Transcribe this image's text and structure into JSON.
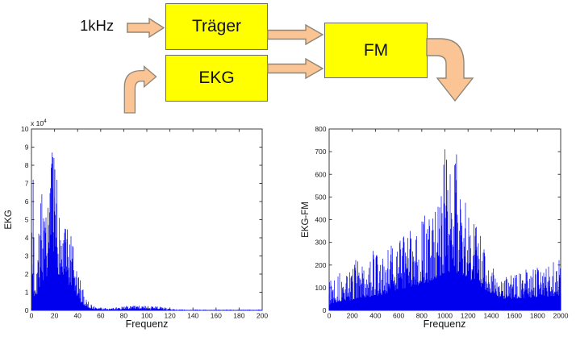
{
  "diagram": {
    "input_label": "1kHz",
    "boxes": {
      "traeger": {
        "label": "Träger"
      },
      "ekg": {
        "label": "EKG"
      },
      "fm": {
        "label": "FM"
      }
    },
    "arrows": [
      "input-to-traeger",
      "traeger-to-fm",
      "ekg-to-fm",
      "feed-into-ekg",
      "fm-output"
    ],
    "colors": {
      "box_fill": "#FFFF00",
      "box_border": "#6b6b6b",
      "arrow_fill": "#FAC494",
      "arrow_border": "#8f8678"
    }
  },
  "chart_data": [
    {
      "type": "line",
      "subtype": "magnitude-spectrum",
      "title": "",
      "ylabel": "EKG",
      "xlabel": "Frequenz",
      "y_scale_label": {
        "prefix": "x 10",
        "exponent": "4"
      },
      "xlim": [
        0,
        200
      ],
      "ylim": [
        0,
        100000
      ],
      "x_ticks": [
        0,
        20,
        40,
        60,
        80,
        100,
        120,
        140,
        160,
        180,
        200
      ],
      "y_ticks": [
        0,
        1,
        2,
        3,
        4,
        5,
        6,
        7,
        8,
        9,
        10
      ],
      "y_tick_scale": 10000,
      "grid": false,
      "legend": null,
      "line_color": "#0000EE",
      "axis_color": "#3d3d3d",
      "seed": 7,
      "envelope": [
        [
          0,
          30000,
          1000
        ],
        [
          1,
          72000,
          4000
        ],
        [
          3,
          56000,
          6000
        ],
        [
          5,
          42000,
          9000
        ],
        [
          8,
          64000,
          15000
        ],
        [
          12,
          52000,
          18000
        ],
        [
          15,
          60000,
          20000
        ],
        [
          18,
          87000,
          22000
        ],
        [
          20,
          80000,
          22000
        ],
        [
          23,
          66000,
          20000
        ],
        [
          26,
          50000,
          19000
        ],
        [
          30,
          46000,
          15000
        ],
        [
          34,
          44000,
          12000
        ],
        [
          38,
          28000,
          9000
        ],
        [
          42,
          18000,
          5000
        ],
        [
          46,
          9000,
          2500
        ],
        [
          50,
          4000,
          1200
        ],
        [
          55,
          2000,
          500
        ],
        [
          62,
          1500,
          300
        ],
        [
          70,
          1300,
          300
        ],
        [
          78,
          2200,
          500
        ],
        [
          85,
          2600,
          600
        ],
        [
          92,
          2800,
          700
        ],
        [
          100,
          2500,
          600
        ],
        [
          108,
          2300,
          500
        ],
        [
          114,
          1800,
          400
        ],
        [
          120,
          900,
          150
        ],
        [
          128,
          500,
          80
        ],
        [
          140,
          450,
          60
        ],
        [
          160,
          400,
          50
        ],
        [
          180,
          400,
          50
        ],
        [
          200,
          500,
          60
        ]
      ],
      "peaks": [
        [
          1.5,
          72000
        ],
        [
          9,
          64000
        ],
        [
          18,
          87000
        ],
        [
          19.5,
          84000
        ],
        [
          22,
          72000
        ],
        [
          29,
          45000
        ]
      ]
    },
    {
      "type": "line",
      "subtype": "magnitude-spectrum",
      "title": "",
      "ylabel": "EKG-FM",
      "xlabel": "Frequenz",
      "y_scale_label": null,
      "xlim": [
        0,
        2000
      ],
      "ylim": [
        0,
        800
      ],
      "x_ticks": [
        0,
        200,
        400,
        600,
        800,
        1000,
        1200,
        1400,
        1600,
        1800,
        2000
      ],
      "y_ticks": [
        0,
        100,
        200,
        300,
        400,
        500,
        600,
        700,
        800
      ],
      "y_tick_scale": 1,
      "grid": false,
      "legend": null,
      "line_color": "#0000EE",
      "axis_color": "#3d3d3d",
      "seed": 13,
      "envelope": [
        [
          0,
          160,
          25
        ],
        [
          60,
          170,
          35
        ],
        [
          120,
          160,
          40
        ],
        [
          200,
          185,
          45
        ],
        [
          240,
          225,
          50
        ],
        [
          300,
          190,
          55
        ],
        [
          360,
          240,
          60
        ],
        [
          390,
          265,
          65
        ],
        [
          440,
          230,
          65
        ],
        [
          500,
          265,
          75
        ],
        [
          560,
          310,
          85
        ],
        [
          620,
          330,
          90
        ],
        [
          680,
          370,
          100
        ],
        [
          720,
          360,
          105
        ],
        [
          760,
          340,
          110
        ],
        [
          800,
          450,
          115
        ],
        [
          840,
          430,
          120
        ],
        [
          880,
          420,
          130
        ],
        [
          930,
          470,
          140
        ],
        [
          970,
          520,
          150
        ],
        [
          1000,
          710,
          165
        ],
        [
          1030,
          660,
          170
        ],
        [
          1060,
          600,
          165
        ],
        [
          1090,
          690,
          165
        ],
        [
          1120,
          580,
          160
        ],
        [
          1160,
          500,
          150
        ],
        [
          1200,
          450,
          140
        ],
        [
          1250,
          400,
          125
        ],
        [
          1300,
          350,
          110
        ],
        [
          1350,
          260,
          90
        ],
        [
          1400,
          200,
          75
        ],
        [
          1450,
          160,
          60
        ],
        [
          1500,
          140,
          50
        ],
        [
          1560,
          160,
          50
        ],
        [
          1620,
          170,
          52
        ],
        [
          1700,
          180,
          55
        ],
        [
          1780,
          190,
          58
        ],
        [
          1850,
          200,
          60
        ],
        [
          1920,
          220,
          62
        ],
        [
          1970,
          245,
          65
        ],
        [
          2000,
          230,
          60
        ]
      ],
      "peaks": [
        [
          1000,
          710
        ],
        [
          1015,
          665
        ],
        [
          1045,
          600
        ],
        [
          1085,
          640
        ],
        [
          1100,
          688
        ],
        [
          380,
          262
        ],
        [
          230,
          222
        ]
      ]
    }
  ]
}
